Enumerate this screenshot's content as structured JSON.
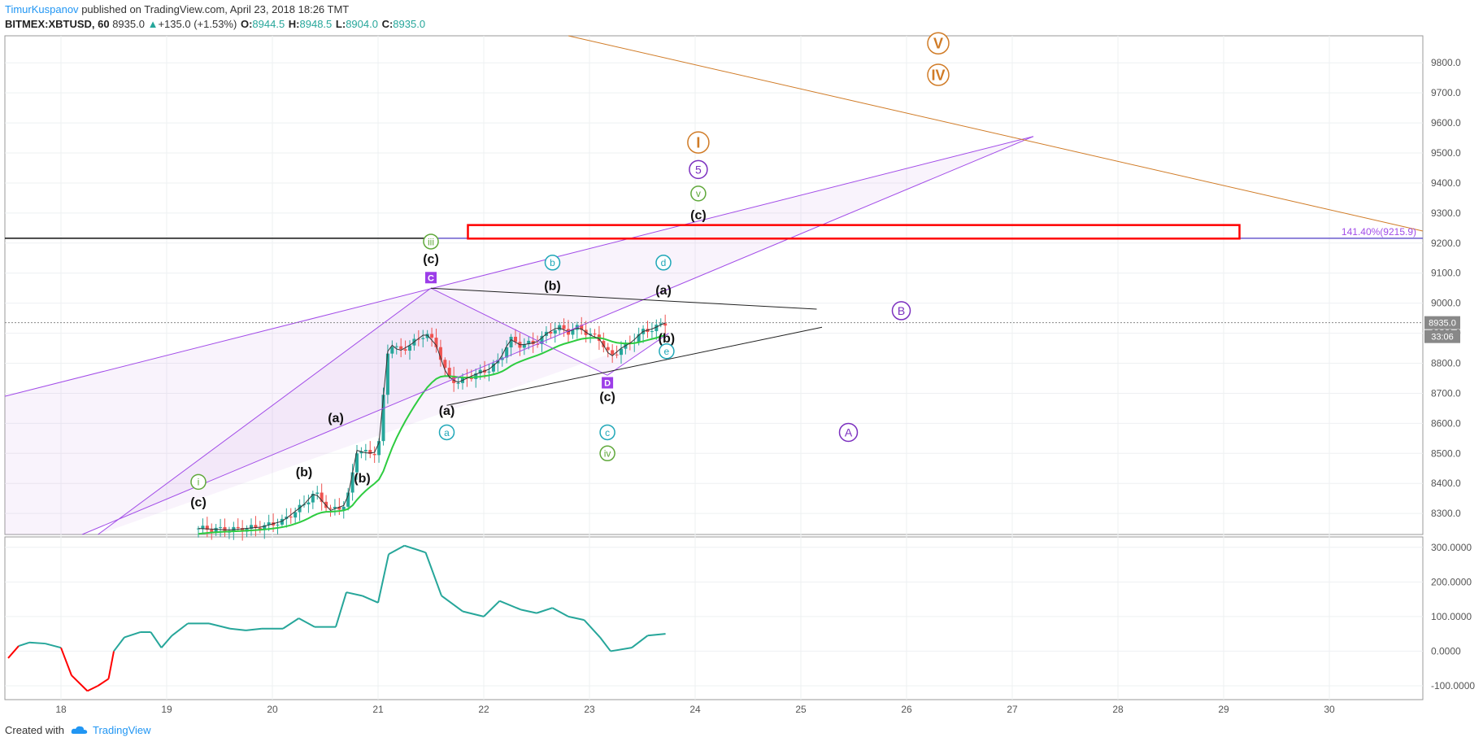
{
  "header": {
    "author": "TimurKuspanov",
    "published": "published on TradingView.com, April 23, 2018 18:26 TMT",
    "symbol": "BITMEX:XBTUSD, 60",
    "last": "8935.0",
    "change": "+135.0 (+1.53%)",
    "open_label": "O:",
    "open": "8944.5",
    "high_label": "H:",
    "high": "8948.5",
    "low_label": "L:",
    "low": "8904.0",
    "close_label": "C:",
    "close": "8935.0"
  },
  "footer": {
    "created_with": "Created with",
    "brand": "TradingView"
  },
  "colors": {
    "up": "#26a69a",
    "down": "#ef5350",
    "ema": "#2ecc40",
    "sma": "#333333",
    "channel": "#a24ce8",
    "trendline_orange": "#d07b26",
    "target_box": "#ff0000",
    "osc_line": "#26a69a",
    "osc_neg": "#ff0000"
  },
  "chart_data": [
    {
      "type": "candlestick",
      "symbol": "BITMEX:XBTUSD",
      "interval": "60",
      "x_ticks": [
        "18",
        "19",
        "20",
        "21",
        "22",
        "23",
        "24",
        "25",
        "26",
        "27",
        "28",
        "29",
        "30"
      ],
      "y_ticks": [
        "8300.0",
        "8400.0",
        "8500.0",
        "8600.0",
        "8700.0",
        "8800.0",
        "8900.0",
        "9000.0",
        "9100.0",
        "9200.0",
        "9300.0",
        "9400.0",
        "9500.0",
        "9600.0",
        "9700.0",
        "9800.0"
      ],
      "ylim": [
        8230,
        9890
      ],
      "last_price_label": "8935.0",
      "countdown_label": "33:06",
      "fib_label": "141.40%",
      "fib_value": "(9215.9)",
      "fib_price": 9215.9,
      "target_zone": [
        9215,
        9260
      ],
      "close_path": [
        {
          "d": 19.3,
          "p": 8250
        },
        {
          "d": 19.6,
          "p": 8245
        },
        {
          "d": 19.9,
          "p": 8255
        },
        {
          "d": 20.1,
          "p": 8275
        },
        {
          "d": 20.3,
          "p": 8330
        },
        {
          "d": 20.4,
          "p": 8370
        },
        {
          "d": 20.55,
          "p": 8310
        },
        {
          "d": 20.7,
          "p": 8330
        },
        {
          "d": 20.8,
          "p": 8510
        },
        {
          "d": 20.9,
          "p": 8500
        },
        {
          "d": 21.0,
          "p": 8505
        },
        {
          "d": 21.1,
          "p": 8870
        },
        {
          "d": 21.2,
          "p": 8840
        },
        {
          "d": 21.3,
          "p": 8860
        },
        {
          "d": 21.45,
          "p": 8900
        },
        {
          "d": 21.55,
          "p": 8860
        },
        {
          "d": 21.65,
          "p": 8760
        },
        {
          "d": 21.75,
          "p": 8735
        },
        {
          "d": 21.9,
          "p": 8760
        },
        {
          "d": 22.05,
          "p": 8780
        },
        {
          "d": 22.15,
          "p": 8810
        },
        {
          "d": 22.25,
          "p": 8880
        },
        {
          "d": 22.35,
          "p": 8860
        },
        {
          "d": 22.5,
          "p": 8870
        },
        {
          "d": 22.6,
          "p": 8900
        },
        {
          "d": 22.7,
          "p": 8920
        },
        {
          "d": 22.8,
          "p": 8905
        },
        {
          "d": 22.9,
          "p": 8920
        },
        {
          "d": 23.0,
          "p": 8895
        },
        {
          "d": 23.1,
          "p": 8880
        },
        {
          "d": 23.2,
          "p": 8820
        },
        {
          "d": 23.3,
          "p": 8850
        },
        {
          "d": 23.4,
          "p": 8870
        },
        {
          "d": 23.5,
          "p": 8905
        },
        {
          "d": 23.6,
          "p": 8915
        },
        {
          "d": 23.72,
          "p": 8935
        }
      ],
      "wave_labels": [
        {
          "text": "(c)",
          "d": 19.3,
          "p": 8340
        },
        {
          "text": "(b)",
          "d": 20.3,
          "p": 8440
        },
        {
          "text": "(a)",
          "d": 20.6,
          "p": 8620
        },
        {
          "text": "(b)",
          "d": 20.85,
          "p": 8420
        },
        {
          "text": "(c)",
          "d": 21.5,
          "p": 9150
        },
        {
          "text": "(a)",
          "d": 21.65,
          "p": 8645
        },
        {
          "text": "(b)",
          "d": 22.65,
          "p": 9060
        },
        {
          "text": "(c)",
          "d": 23.17,
          "p": 8690
        },
        {
          "text": "(a)",
          "d": 23.7,
          "p": 9045
        },
        {
          "text": "(b)",
          "d": 23.73,
          "p": 8885
        },
        {
          "text": "(c)",
          "d": 24.03,
          "p": 9295
        }
      ],
      "circle_labels": [
        {
          "text": "i",
          "d": 19.3,
          "p": 8405,
          "style": "green"
        },
        {
          "text": "iii",
          "d": 21.5,
          "p": 9205,
          "style": "green"
        },
        {
          "text": "iv",
          "d": 23.17,
          "p": 8500,
          "style": "green"
        },
        {
          "text": "v",
          "d": 24.03,
          "p": 9365,
          "style": "green"
        },
        {
          "text": "a",
          "d": 21.65,
          "p": 8570,
          "style": "teal"
        },
        {
          "text": "b",
          "d": 22.65,
          "p": 9135,
          "style": "teal"
        },
        {
          "text": "c",
          "d": 23.17,
          "p": 8570,
          "style": "teal"
        },
        {
          "text": "d",
          "d": 23.7,
          "p": 9135,
          "style": "teal"
        },
        {
          "text": "e",
          "d": 23.73,
          "p": 8840,
          "style": "teal"
        },
        {
          "text": "C",
          "d": 21.5,
          "p": 9085,
          "style": "purple-box"
        },
        {
          "text": "D",
          "d": 23.17,
          "p": 8735,
          "style": "purple-box"
        },
        {
          "text": "5",
          "d": 24.03,
          "p": 9445,
          "style": "purple"
        },
        {
          "text": "B",
          "d": 25.95,
          "p": 8975,
          "style": "purple"
        },
        {
          "text": "A",
          "d": 25.45,
          "p": 8570,
          "style": "purple"
        },
        {
          "text": "I",
          "d": 24.03,
          "p": 9535,
          "style": "orange"
        },
        {
          "text": "IV",
          "d": 26.3,
          "p": 9760,
          "style": "orange"
        },
        {
          "text": "V",
          "d": 26.3,
          "p": 9865,
          "style": "orange"
        }
      ]
    },
    {
      "type": "line",
      "name": "",
      "y_ticks": [
        "300.0000",
        "200.0000",
        "100.0000",
        "0.0000",
        "-100.0000"
      ],
      "ylim": [
        -140,
        330
      ],
      "values": [
        {
          "d": 17.5,
          "v": -20
        },
        {
          "d": 17.6,
          "v": 15
        },
        {
          "d": 17.7,
          "v": 25
        },
        {
          "d": 17.85,
          "v": 22
        },
        {
          "d": 18.0,
          "v": 10
        },
        {
          "d": 18.1,
          "v": -70
        },
        {
          "d": 18.25,
          "v": -115
        },
        {
          "d": 18.35,
          "v": -100
        },
        {
          "d": 18.45,
          "v": -80
        },
        {
          "d": 18.5,
          "v": 0
        },
        {
          "d": 18.6,
          "v": 40
        },
        {
          "d": 18.75,
          "v": 55
        },
        {
          "d": 18.85,
          "v": 55
        },
        {
          "d": 18.95,
          "v": 10
        },
        {
          "d": 19.05,
          "v": 45
        },
        {
          "d": 19.2,
          "v": 80
        },
        {
          "d": 19.4,
          "v": 80
        },
        {
          "d": 19.6,
          "v": 65
        },
        {
          "d": 19.75,
          "v": 60
        },
        {
          "d": 19.9,
          "v": 65
        },
        {
          "d": 20.1,
          "v": 65
        },
        {
          "d": 20.25,
          "v": 95
        },
        {
          "d": 20.4,
          "v": 70
        },
        {
          "d": 20.6,
          "v": 70
        },
        {
          "d": 20.7,
          "v": 170
        },
        {
          "d": 20.85,
          "v": 160
        },
        {
          "d": 21.0,
          "v": 140
        },
        {
          "d": 21.1,
          "v": 280
        },
        {
          "d": 21.25,
          "v": 305
        },
        {
          "d": 21.45,
          "v": 285
        },
        {
          "d": 21.6,
          "v": 160
        },
        {
          "d": 21.8,
          "v": 115
        },
        {
          "d": 22.0,
          "v": 100
        },
        {
          "d": 22.15,
          "v": 145
        },
        {
          "d": 22.35,
          "v": 120
        },
        {
          "d": 22.5,
          "v": 110
        },
        {
          "d": 22.65,
          "v": 125
        },
        {
          "d": 22.8,
          "v": 100
        },
        {
          "d": 22.95,
          "v": 90
        },
        {
          "d": 23.1,
          "v": 40
        },
        {
          "d": 23.2,
          "v": 0
        },
        {
          "d": 23.4,
          "v": 10
        },
        {
          "d": 23.55,
          "v": 45
        },
        {
          "d": 23.72,
          "v": 50
        }
      ]
    }
  ]
}
